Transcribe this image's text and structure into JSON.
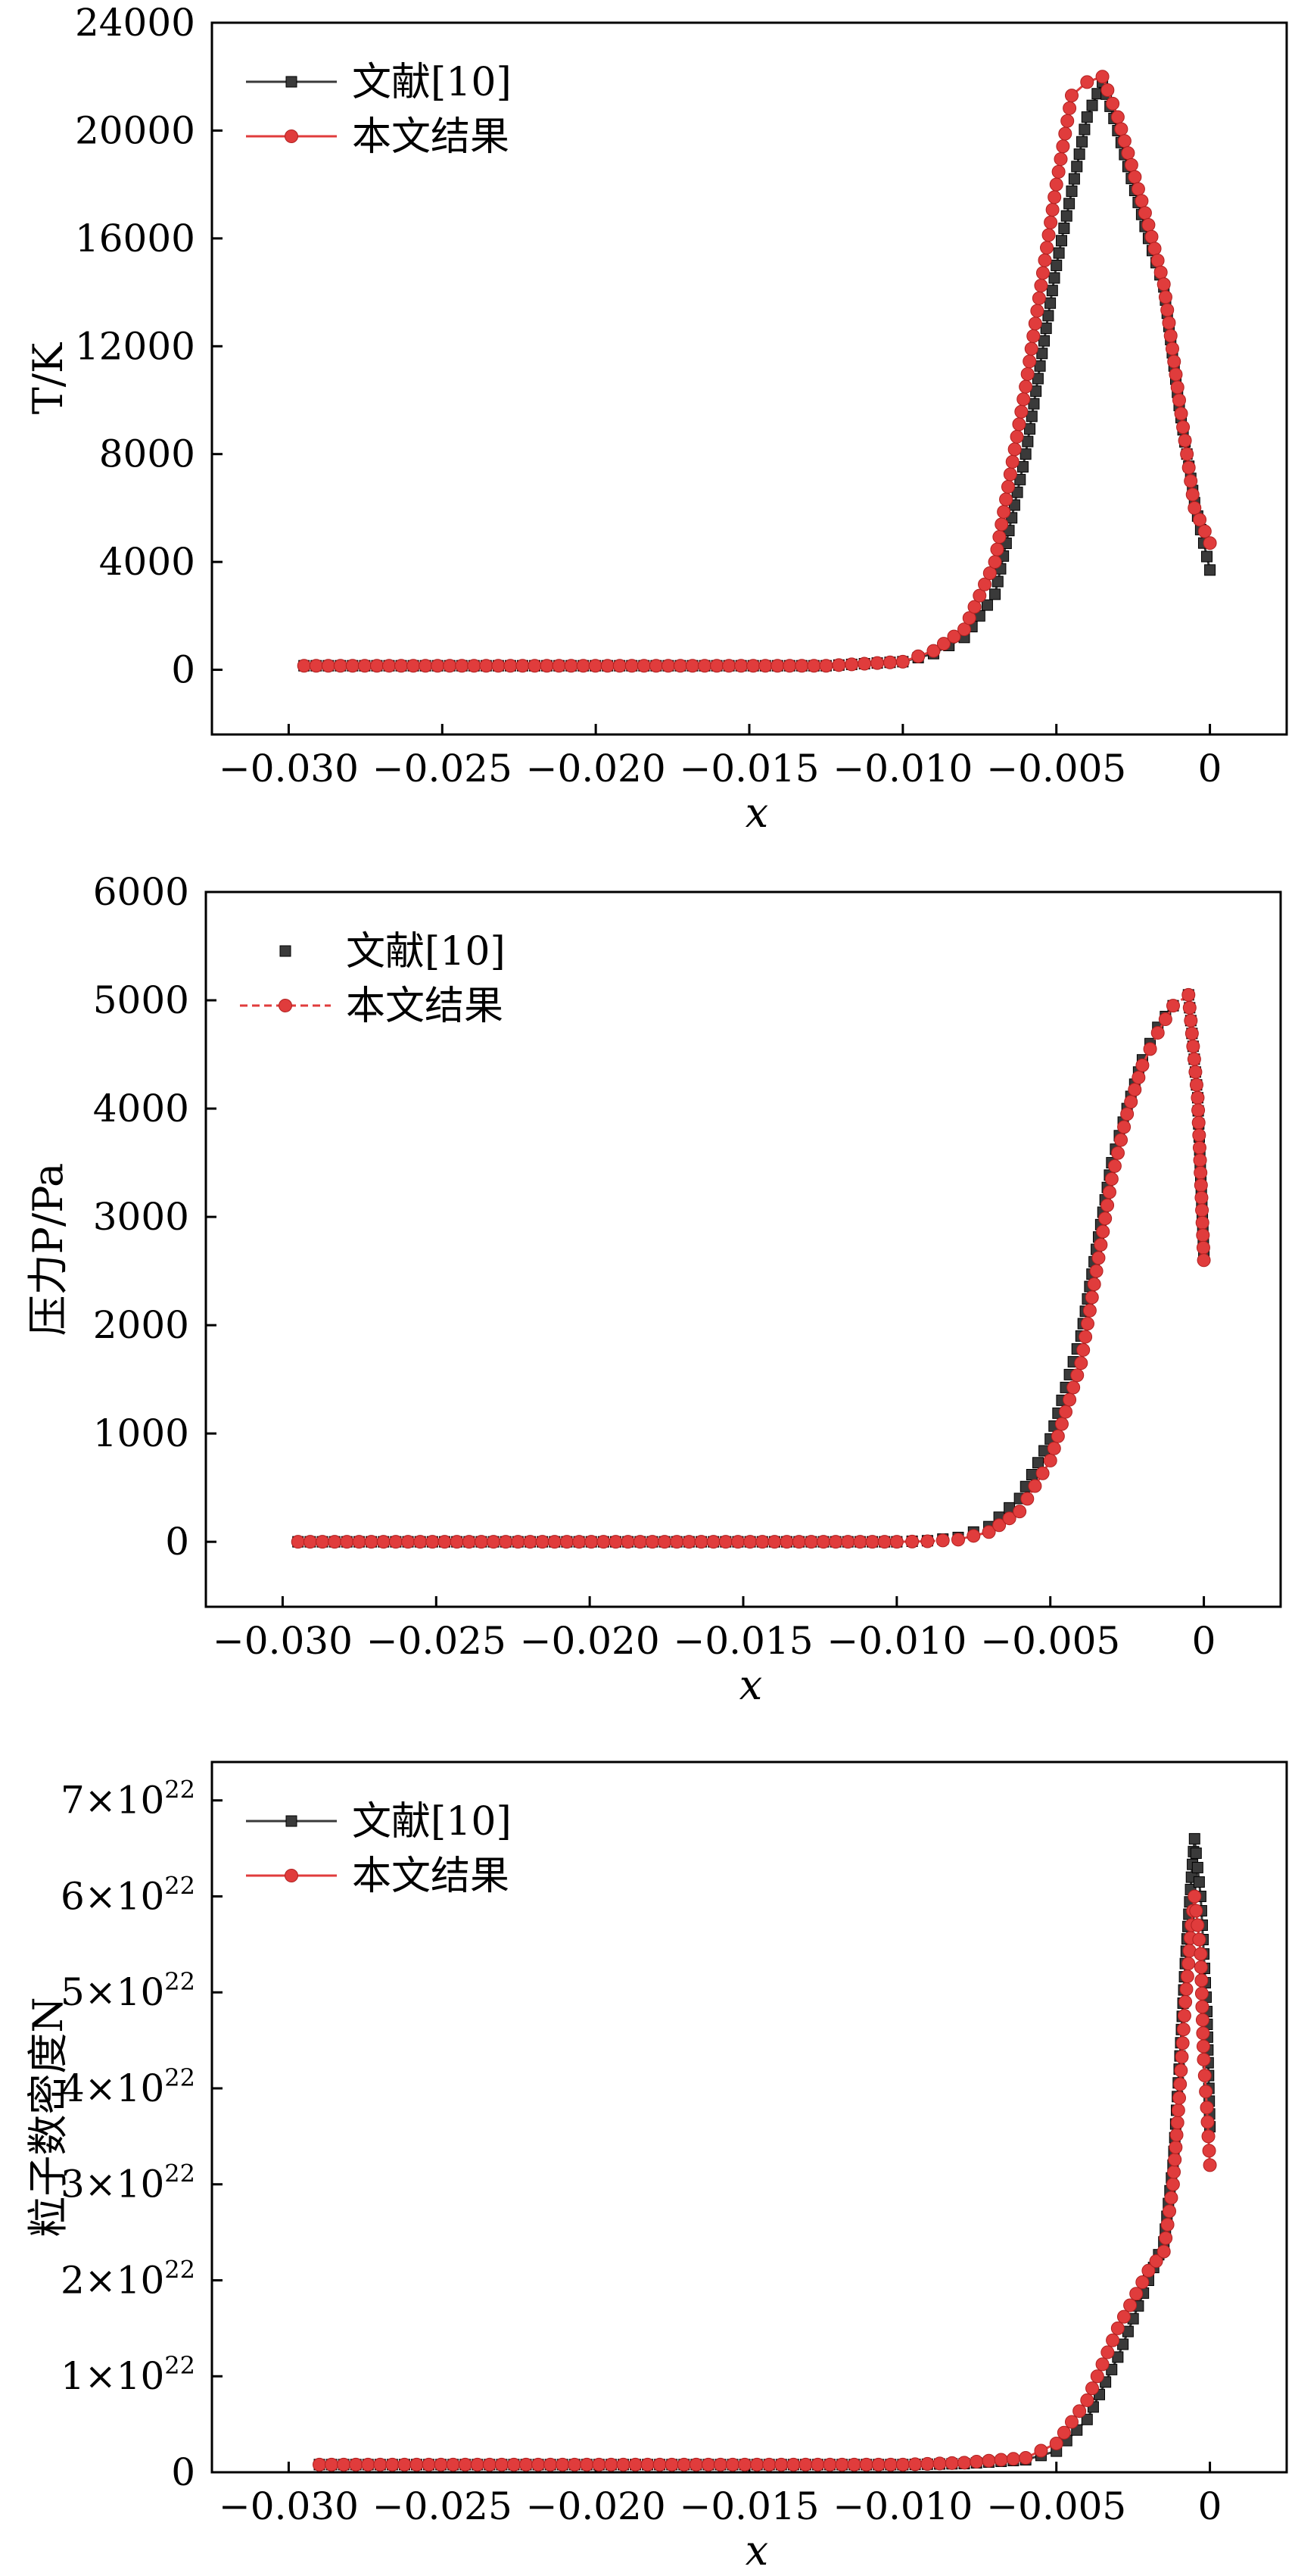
{
  "chart_data": [
    {
      "type": "line",
      "ylabel": "T/K",
      "xlabel": "x",
      "xlim": [
        -0.0325,
        0.0025
      ],
      "ylim": [
        -2400,
        24000
      ],
      "xticks": [
        -0.03,
        -0.025,
        -0.02,
        -0.015,
        -0.01,
        -0.005,
        0
      ],
      "xtick_labels": [
        "−0.030",
        "−0.025",
        "−0.020",
        "−0.015",
        "−0.010",
        "−0.005",
        "0"
      ],
      "yticks": [
        0,
        4000,
        8000,
        12000,
        16000,
        20000,
        24000
      ],
      "ytick_labels": [
        "0",
        "4000",
        "8000",
        "12000",
        "16000",
        "20000",
        "24000"
      ],
      "legend": "top-left",
      "series": [
        {
          "name": "文献[10]",
          "color": "#3a3a3a",
          "marker": "square",
          "linestyle": "solid",
          "x": [
            -0.0295,
            -0.0125,
            -0.01,
            -0.009,
            -0.008,
            -0.007,
            -0.006,
            -0.005,
            -0.004,
            -0.0035,
            -0.003,
            -0.002,
            -0.0015,
            -0.001,
            -0.0005,
            0.0
          ],
          "y": [
            150,
            150,
            300,
            600,
            1200,
            2800,
            8000,
            15000,
            20500,
            21800,
            20000,
            16000,
            14200,
            9800,
            6200,
            3700
          ]
        },
        {
          "name": "本文结果",
          "color": "#e03c3c",
          "marker": "circle",
          "linestyle": "solid",
          "x": [
            -0.0295,
            -0.0125,
            -0.01,
            -0.009,
            -0.008,
            -0.007,
            -0.006,
            -0.005,
            -0.0045,
            -0.004,
            -0.0035,
            -0.003,
            -0.002,
            -0.0015,
            -0.001,
            -0.0005,
            0.0
          ],
          "y": [
            150,
            150,
            300,
            700,
            1500,
            4000,
            10500,
            18000,
            21300,
            21800,
            22000,
            20500,
            16500,
            14300,
            10000,
            6000,
            4700
          ]
        }
      ]
    },
    {
      "type": "scatter",
      "ylabel": "压力P/Pa",
      "xlabel": "x",
      "xlim": [
        -0.0325,
        0.0025
      ],
      "ylim": [
        -600,
        6000
      ],
      "xticks": [
        -0.03,
        -0.025,
        -0.02,
        -0.015,
        -0.01,
        -0.005,
        0
      ],
      "xtick_labels": [
        "−0.030",
        "−0.025",
        "−0.020",
        "−0.015",
        "−0.010",
        "−0.005",
        "0"
      ],
      "yticks": [
        0,
        1000,
        2000,
        3000,
        4000,
        5000,
        6000
      ],
      "ytick_labels": [
        "0",
        "1000",
        "2000",
        "3000",
        "4000",
        "5000",
        "6000"
      ],
      "legend": "top-left",
      "series": [
        {
          "name": "文献[10]",
          "color": "#3a3a3a",
          "marker": "square",
          "linestyle": "none",
          "x": [
            -0.0295,
            -0.01,
            -0.009,
            -0.008,
            -0.007,
            -0.006,
            -0.005,
            -0.004,
            -0.0035,
            -0.003,
            -0.0025,
            -0.002,
            -0.0015,
            -0.001,
            -0.0005,
            -0.0002,
            0.0
          ],
          "y": [
            0,
            0,
            10,
            40,
            140,
            400,
            950,
            1900,
            2700,
            3500,
            4000,
            4450,
            4750,
            4950,
            5050,
            4100,
            2650
          ]
        },
        {
          "name": "本文结果",
          "color": "#e03c3c",
          "marker": "circle",
          "linestyle": "dashed",
          "x": [
            -0.0295,
            -0.01,
            -0.009,
            -0.008,
            -0.007,
            -0.006,
            -0.005,
            -0.004,
            -0.0035,
            -0.003,
            -0.0025,
            -0.002,
            -0.0015,
            -0.001,
            -0.0005,
            -0.0002,
            0.0
          ],
          "y": [
            0,
            0,
            5,
            20,
            90,
            280,
            750,
            1650,
            2500,
            3350,
            3950,
            4400,
            4700,
            4950,
            5050,
            4100,
            2600
          ]
        }
      ]
    },
    {
      "type": "line",
      "ylabel": "粒子数密度N",
      "xlabel": "x",
      "xlim": [
        -0.0325,
        0.0025
      ],
      "ylim": [
        0,
        7.4e+22
      ],
      "xticks": [
        -0.03,
        -0.025,
        -0.02,
        -0.015,
        -0.01,
        -0.005,
        0
      ],
      "xtick_labels": [
        "−0.030",
        "−0.025",
        "−0.020",
        "−0.015",
        "−0.010",
        "−0.005",
        "0"
      ],
      "yticks": [
        0,
        1e+22,
        2e+22,
        3e+22,
        4e+22,
        5e+22,
        6e+22,
        7e+22
      ],
      "ytick_labels": [
        {
          "mantissa": "0",
          "exp": ""
        },
        {
          "mantissa": "1×10",
          "exp": "22"
        },
        {
          "mantissa": "2×10",
          "exp": "22"
        },
        {
          "mantissa": "3×10",
          "exp": "22"
        },
        {
          "mantissa": "4×10",
          "exp": "22"
        },
        {
          "mantissa": "5×10",
          "exp": "22"
        },
        {
          "mantissa": "6×10",
          "exp": "22"
        },
        {
          "mantissa": "7×10",
          "exp": "22"
        }
      ],
      "legend": "top-left",
      "series": [
        {
          "name": "文献[10]",
          "color": "#3a3a3a",
          "marker": "square",
          "linestyle": "solid",
          "x": [
            -0.029,
            -0.01,
            -0.008,
            -0.006,
            -0.005,
            -0.004,
            -0.003,
            -0.002,
            -0.0015,
            -0.0012,
            -0.001,
            -0.0008,
            -0.0006,
            -0.0005,
            -0.0003,
            -0.0002,
            -0.0001,
            0.0
          ],
          "y": [
            8e+20,
            8e+20,
            9e+20,
            1.3e+21,
            2.2e+21,
            5.5e+21,
            1.2e+22,
            2e+22,
            2.4e+22,
            3.2e+22,
            4.2e+22,
            5.3e+22,
            6.2e+22,
            6.6e+22,
            6e+22,
            5.4e+22,
            4.8e+22,
            3.6e+22
          ]
        },
        {
          "name": "本文结果",
          "color": "#e03c3c",
          "marker": "circle",
          "linestyle": "solid",
          "x": [
            -0.029,
            -0.01,
            -0.008,
            -0.006,
            -0.005,
            -0.004,
            -0.003,
            -0.002,
            -0.0015,
            -0.0012,
            -0.001,
            -0.0008,
            -0.0006,
            -0.0005,
            -0.0003,
            -0.0002,
            -0.0001,
            0.0
          ],
          "y": [
            8e+20,
            8e+20,
            1e+21,
            1.5e+21,
            3e+21,
            7.5e+21,
            1.5e+22,
            2.1e+22,
            2.3e+22,
            3e+22,
            3.9e+22,
            4.9e+22,
            5.7e+22,
            6e+22,
            5.4e+22,
            4.3e+22,
            3.8e+22,
            3.2e+22
          ]
        }
      ]
    }
  ]
}
